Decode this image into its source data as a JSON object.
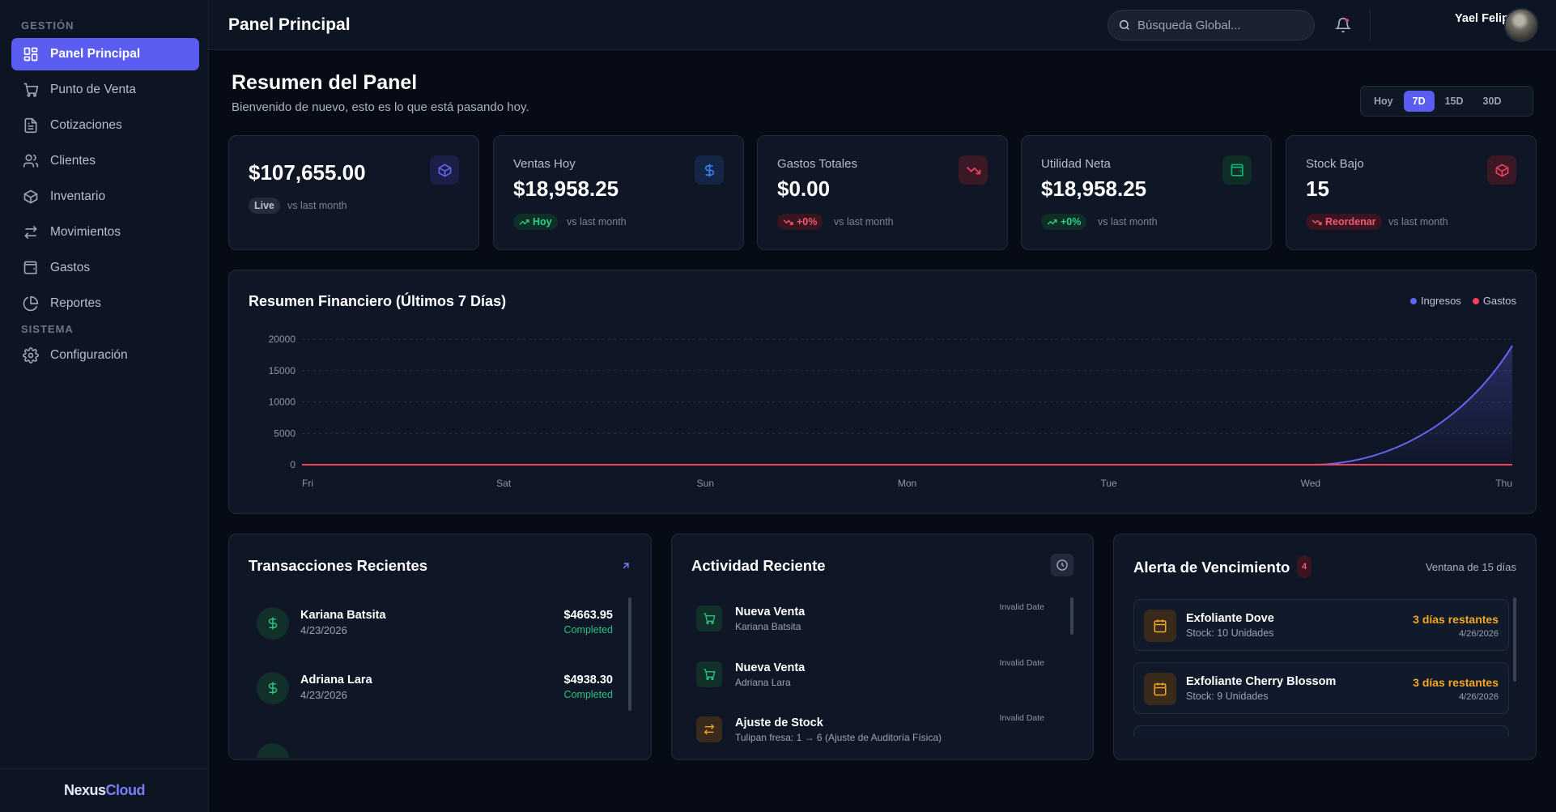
{
  "sidebar": {
    "section_gestion": "GESTIÓN",
    "section_sistema": "SISTEMA",
    "items": [
      {
        "label": "Panel Principal",
        "icon": "dashboard-icon"
      },
      {
        "label": "Punto de Venta",
        "icon": "cart-icon"
      },
      {
        "label": "Cotizaciones",
        "icon": "document-icon"
      },
      {
        "label": "Clientes",
        "icon": "users-icon"
      },
      {
        "label": "Inventario",
        "icon": "box-icon"
      },
      {
        "label": "Movimientos",
        "icon": "arrows-icon"
      },
      {
        "label": "Gastos",
        "icon": "wallet-icon"
      },
      {
        "label": "Reportes",
        "icon": "pie-chart-icon"
      }
    ],
    "config_label": "Configuración",
    "brand_part1": "Nexus",
    "brand_part2": "Cloud"
  },
  "header": {
    "title": "Panel Principal",
    "search_placeholder": "Búsqueda Global...",
    "user_name": "Yael Felipe"
  },
  "main": {
    "title": "Resumen del Panel",
    "subtitle": "Bienvenido de nuevo, esto es lo que está pasando hoy.",
    "ranges": [
      "Hoy",
      "7D",
      "15D",
      "30D"
    ],
    "active_range": "7D"
  },
  "stats": [
    {
      "label": "",
      "value": "$107,655.00",
      "badge": "Live",
      "vs": "vs last month",
      "icon": "cube-icon",
      "accent": "#6366f1"
    },
    {
      "label": "Ventas Hoy",
      "value": "$18,958.25",
      "badge": "Hoy",
      "vs": "vs last month",
      "icon": "dollar-icon",
      "accent": "#3b82f6"
    },
    {
      "label": "Gastos Totales",
      "value": "$0.00",
      "badge": "+0%",
      "vs": "vs last month",
      "icon": "trend-down-icon",
      "accent": "#f43f5e"
    },
    {
      "label": "Utilidad Neta",
      "value": "$18,958.25",
      "badge": "+0%",
      "vs": "vs last month",
      "icon": "wallet-icon",
      "accent": "#10b981"
    },
    {
      "label": "Stock Bajo",
      "value": "15",
      "badge": "Reordenar",
      "vs": "vs last month",
      "icon": "box-alert-icon",
      "accent": "#f43f5e"
    }
  ],
  "chart_data": {
    "type": "area",
    "title": "Resumen Financiero (Últimos 7 Días)",
    "categories": [
      "Fri",
      "Sat",
      "Sun",
      "Mon",
      "Tue",
      "Wed",
      "Thu"
    ],
    "ylim": [
      0,
      20000
    ],
    "yticks": [
      "20000",
      "15000",
      "10000",
      "5000",
      "0"
    ],
    "series": [
      {
        "name": "Ingresos",
        "values": [
          0,
          0,
          0,
          0,
          0,
          0,
          18958.25
        ],
        "color": "#6366f1"
      },
      {
        "name": "Gastos",
        "values": [
          0,
          0,
          0,
          0,
          0,
          0,
          0
        ],
        "color": "#f43f5e"
      }
    ],
    "legend": "top-right",
    "grid": true
  },
  "transactions": {
    "title": "Transacciones Recientes",
    "items": [
      {
        "name": "Kariana Batsita",
        "date": "4/23/2026",
        "amount": "$4663.95",
        "status": "Completed"
      },
      {
        "name": "Adriana Lara",
        "date": "4/23/2026",
        "amount": "$4938.30",
        "status": "Completed"
      }
    ]
  },
  "activity": {
    "title": "Actividad Reciente",
    "items": [
      {
        "name": "Nueva Venta",
        "desc": "Kariana Batsita",
        "time": "Invalid Date",
        "kind": "sale"
      },
      {
        "name": "Nueva Venta",
        "desc": "Adriana Lara",
        "time": "Invalid Date",
        "kind": "sale"
      },
      {
        "name": "Ajuste de Stock",
        "desc": "Tulipan fresa: 1 → 6 (Ajuste de Auditoría Física)",
        "time": "Invalid Date",
        "kind": "stock"
      }
    ]
  },
  "expiry": {
    "title": "Alerta de Vencimiento",
    "count": "4",
    "window": "Ventana de 15 días",
    "items": [
      {
        "name": "Exfoliante Dove",
        "stock": "Stock: 10 Unidades",
        "days": "3 días restantes",
        "date": "4/26/2026"
      },
      {
        "name": "Exfoliante Cherry Blossom",
        "stock": "Stock: 9 Unidades",
        "days": "3 días restantes",
        "date": "4/26/2026"
      }
    ]
  }
}
